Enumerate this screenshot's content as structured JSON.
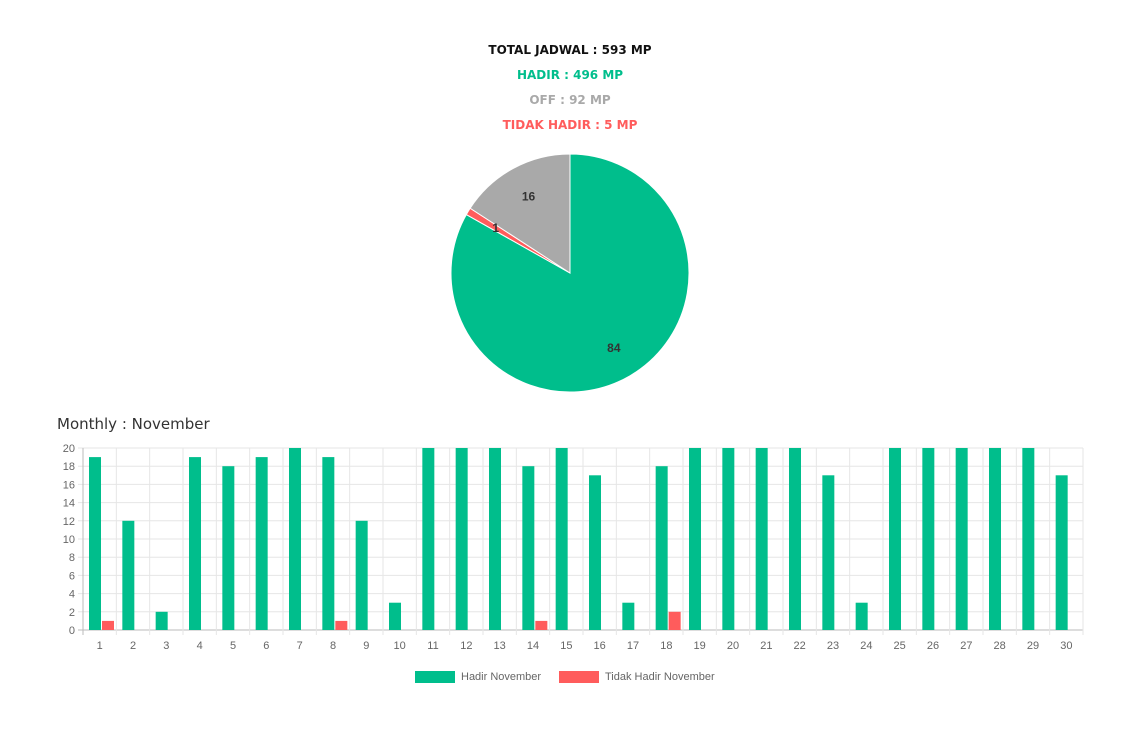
{
  "summary": {
    "total": "TOTAL JADWAL : 593 MP",
    "hadir": "HADIR : 496 MP",
    "off": "OFF : 92 MP",
    "tidak_hadir": "TIDAK HADIR : 5 MP"
  },
  "colors": {
    "hadir": "#00be8c",
    "off": "#a9a9a9",
    "tidak_hadir": "#ff5c5c",
    "total": "#111111"
  },
  "chart_data": [
    {
      "type": "pie",
      "slices": [
        {
          "label": "Hadir",
          "value": 84,
          "color": "#00be8c"
        },
        {
          "label": "Tidak Hadir",
          "value": 1,
          "color": "#ff5c5c"
        },
        {
          "label": "Off",
          "value": 16,
          "color": "#a9a9a9"
        }
      ]
    },
    {
      "type": "bar",
      "title": "Monthly : November",
      "categories": [
        "1",
        "2",
        "3",
        "4",
        "5",
        "6",
        "7",
        "8",
        "9",
        "10",
        "11",
        "12",
        "13",
        "14",
        "15",
        "16",
        "17",
        "18",
        "19",
        "20",
        "21",
        "22",
        "23",
        "24",
        "25",
        "26",
        "27",
        "28",
        "29",
        "30"
      ],
      "series": [
        {
          "name": "Hadir November",
          "color": "#00be8c",
          "values": [
            19,
            12,
            2,
            19,
            18,
            19,
            20,
            19,
            12,
            3,
            20,
            20,
            20,
            18,
            20,
            17,
            3,
            18,
            20,
            20,
            20,
            20,
            17,
            3,
            20,
            20,
            20,
            20,
            20,
            17
          ]
        },
        {
          "name": "Tidak Hadir November",
          "color": "#ff5c5c",
          "values": [
            1,
            0,
            0,
            0,
            0,
            0,
            0,
            1,
            0,
            0,
            0,
            0,
            0,
            1,
            0,
            0,
            0,
            2,
            0,
            0,
            0,
            0,
            0,
            0,
            0,
            0,
            0,
            0,
            0,
            0
          ]
        }
      ],
      "ylim": [
        0,
        20
      ],
      "yticks": [
        0,
        2,
        4,
        6,
        8,
        10,
        12,
        14,
        16,
        18,
        20
      ],
      "grid": true,
      "legend": "bottom"
    }
  ]
}
